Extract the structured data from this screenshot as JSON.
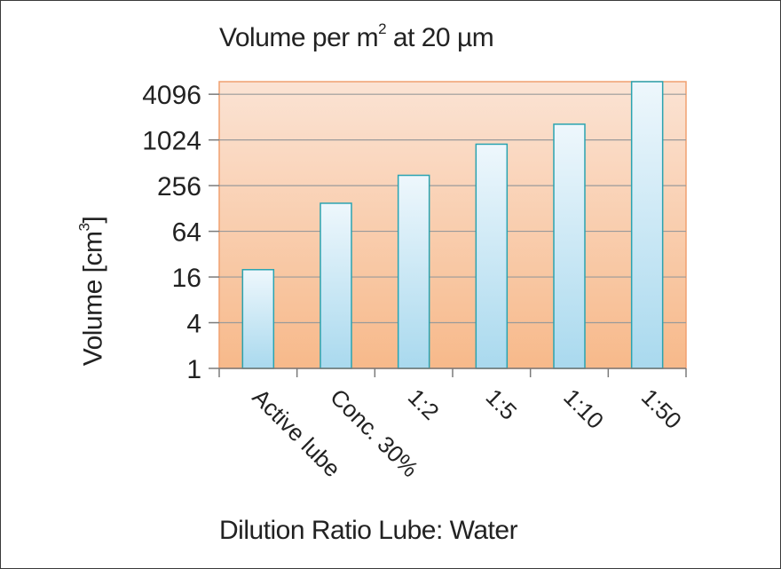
{
  "chart_data": {
    "type": "bar",
    "title_text": "Volume per m",
    "title_sup": "2",
    "title_rest": " at 20 µm",
    "xlabel": "Dilution Ratio Lube: Water",
    "ylabel_text": "Volume [cm",
    "ylabel_sup": "3",
    "ylabel_rest": "]",
    "scale": "log2",
    "ylim": [
      1,
      6000
    ],
    "yticks": [
      1,
      4,
      16,
      64,
      256,
      1024,
      4096
    ],
    "ytick_labels": [
      "1",
      "4",
      "16",
      "64",
      "256",
      "1024",
      "4096"
    ],
    "categories": [
      "Active lube",
      "Conc. 30%",
      "1:2",
      "1:5",
      "1:10",
      "1:50"
    ],
    "values": [
      20,
      150,
      350,
      900,
      1650,
      6000
    ],
    "grid": true,
    "legend": "none",
    "colors": {
      "plot_top": "#fbe3d4",
      "plot_bottom": "#f7b98a",
      "plot_border": "#f0a070",
      "gridline": "#9a9a9a",
      "bar_top": "#eef7fc",
      "bar_bottom": "#a9d9ee",
      "bar_border": "#2aa3b0",
      "axis": "#7a7a7a"
    }
  }
}
